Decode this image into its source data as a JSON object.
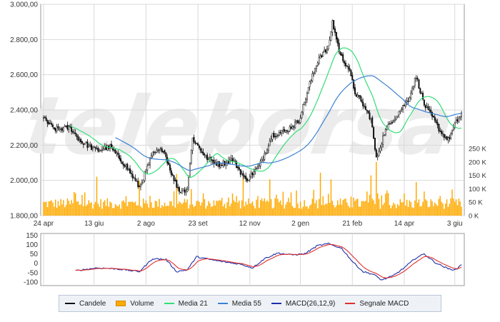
{
  "chart_data": [
    {
      "type": "candlestick",
      "name": "price-panel",
      "watermark": "teleborsa",
      "x_tick_labels": [
        "24 apr",
        "13 giu",
        "2 ago",
        "23 set",
        "12 nov",
        "2 gen",
        "21 feb",
        "14 apr",
        "3 giu"
      ],
      "y_tick_labels": [
        "3.000,00",
        "2.800,00",
        "2.600,00",
        "2.400,00",
        "2.200,00",
        "2.000,00",
        "1.800,00"
      ],
      "ylim": [
        1800,
        3000
      ],
      "grid": true,
      "price_keypoints": [
        {
          "x": 0,
          "y": 2350
        },
        {
          "x": 8,
          "y": 2290
        },
        {
          "x": 20,
          "y": 2300
        },
        {
          "x": 28,
          "y": 2220
        },
        {
          "x": 40,
          "y": 2170
        },
        {
          "x": 50,
          "y": 2190
        },
        {
          "x": 62,
          "y": 2080
        },
        {
          "x": 72,
          "y": 1960
        },
        {
          "x": 82,
          "y": 2150
        },
        {
          "x": 90,
          "y": 2180
        },
        {
          "x": 97,
          "y": 2020
        },
        {
          "x": 102,
          "y": 1940
        },
        {
          "x": 108,
          "y": 1950
        },
        {
          "x": 112,
          "y": 2240
        },
        {
          "x": 122,
          "y": 2130
        },
        {
          "x": 132,
          "y": 2090
        },
        {
          "x": 142,
          "y": 2120
        },
        {
          "x": 152,
          "y": 2000
        },
        {
          "x": 162,
          "y": 2080
        },
        {
          "x": 172,
          "y": 2260
        },
        {
          "x": 182,
          "y": 2280
        },
        {
          "x": 192,
          "y": 2340
        },
        {
          "x": 200,
          "y": 2550
        },
        {
          "x": 207,
          "y": 2700
        },
        {
          "x": 214,
          "y": 2750
        },
        {
          "x": 217,
          "y": 2900
        },
        {
          "x": 223,
          "y": 2710
        },
        {
          "x": 229,
          "y": 2640
        },
        {
          "x": 234,
          "y": 2500
        },
        {
          "x": 240,
          "y": 2430
        },
        {
          "x": 246,
          "y": 2350
        },
        {
          "x": 250,
          "y": 2120
        },
        {
          "x": 256,
          "y": 2270
        },
        {
          "x": 262,
          "y": 2340
        },
        {
          "x": 268,
          "y": 2400
        },
        {
          "x": 274,
          "y": 2460
        },
        {
          "x": 280,
          "y": 2590
        },
        {
          "x": 286,
          "y": 2430
        },
        {
          "x": 292,
          "y": 2360
        },
        {
          "x": 298,
          "y": 2280
        },
        {
          "x": 304,
          "y": 2230
        },
        {
          "x": 310,
          "y": 2330
        },
        {
          "x": 314,
          "y": 2380
        }
      ],
      "series": [
        {
          "name": "Media 21",
          "color": "#33dd77"
        },
        {
          "name": "Media 55",
          "color": "#3b82d4"
        }
      ]
    },
    {
      "type": "bar",
      "name": "volume-panel",
      "series_name": "Volume",
      "y_tick_labels": [
        "250 K",
        "200 K",
        "150 K",
        "100 K",
        "50 K",
        "0 K"
      ],
      "ylim": [
        0,
        250000
      ],
      "volume_spikes": [
        {
          "x": 40,
          "v": 145000
        },
        {
          "x": 72,
          "v": 130000
        },
        {
          "x": 100,
          "v": 155000
        },
        {
          "x": 150,
          "v": 145000
        },
        {
          "x": 170,
          "v": 135000
        },
        {
          "x": 208,
          "v": 160000
        },
        {
          "x": 216,
          "v": 135000
        },
        {
          "x": 250,
          "v": 200000
        },
        {
          "x": 246,
          "v": 150000
        },
        {
          "x": 280,
          "v": 125000
        }
      ],
      "color": "#ffaa00"
    },
    {
      "type": "line",
      "name": "macd-panel",
      "y_tick_labels": [
        "150",
        "100",
        "50",
        "0",
        "-50",
        "-100"
      ],
      "ylim": [
        -120,
        160
      ],
      "macd_keypoints": [
        {
          "x": 24,
          "y": -40
        },
        {
          "x": 40,
          "y": -25
        },
        {
          "x": 55,
          "y": -30
        },
        {
          "x": 72,
          "y": -45
        },
        {
          "x": 82,
          "y": 25
        },
        {
          "x": 92,
          "y": 20
        },
        {
          "x": 100,
          "y": -45
        },
        {
          "x": 108,
          "y": -35
        },
        {
          "x": 115,
          "y": 35
        },
        {
          "x": 125,
          "y": 20
        },
        {
          "x": 138,
          "y": 5
        },
        {
          "x": 148,
          "y": -5
        },
        {
          "x": 157,
          "y": -25
        },
        {
          "x": 166,
          "y": 25
        },
        {
          "x": 176,
          "y": 55
        },
        {
          "x": 186,
          "y": 45
        },
        {
          "x": 196,
          "y": 50
        },
        {
          "x": 206,
          "y": 95
        },
        {
          "x": 214,
          "y": 105
        },
        {
          "x": 224,
          "y": 80
        },
        {
          "x": 232,
          "y": 10
        },
        {
          "x": 240,
          "y": -45
        },
        {
          "x": 248,
          "y": -60
        },
        {
          "x": 254,
          "y": -90
        },
        {
          "x": 262,
          "y": -70
        },
        {
          "x": 270,
          "y": -30
        },
        {
          "x": 280,
          "y": 30
        },
        {
          "x": 286,
          "y": 50
        },
        {
          "x": 294,
          "y": 5
        },
        {
          "x": 304,
          "y": -30
        },
        {
          "x": 310,
          "y": -35
        },
        {
          "x": 314,
          "y": -5
        }
      ],
      "series": [
        {
          "name": "MACD(26,12,9)",
          "color": "#1f2fa8"
        },
        {
          "name": "Segnale MACD",
          "color": "#e03030"
        }
      ]
    }
  ],
  "legend": {
    "items": [
      {
        "label": "Candele",
        "kind": "line",
        "color": "#111111"
      },
      {
        "label": "Volume",
        "kind": "box",
        "color": "#ffaa00"
      },
      {
        "label": "Media 21",
        "kind": "line",
        "color": "#33dd77"
      },
      {
        "label": "Media 55",
        "kind": "line",
        "color": "#3b82d4"
      },
      {
        "label": "MACD(26,12,9)",
        "kind": "line",
        "color": "#1f2fa8"
      },
      {
        "label": "Segnale MACD",
        "kind": "line",
        "color": "#e03030"
      }
    ]
  },
  "colors": {
    "grid": "#d9d9d9",
    "panel_border": "#9a9a9a",
    "candle_up": "#111111",
    "candle_down": "#111111",
    "candle_up_fill": "#ffffff",
    "watermark": "#ececec"
  }
}
